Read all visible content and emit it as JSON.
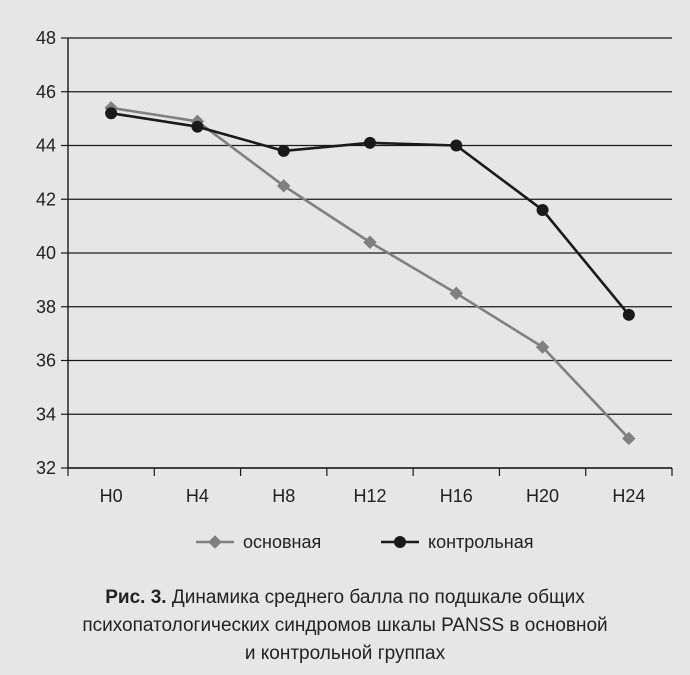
{
  "chart_data": {
    "type": "line",
    "categories": [
      "H0",
      "H4",
      "H8",
      "H12",
      "H16",
      "H20",
      "H24"
    ],
    "series": [
      {
        "name": "основная",
        "color": "#808080",
        "marker": "diamond",
        "values": [
          45.4,
          44.9,
          42.5,
          40.4,
          38.5,
          36.5,
          33.1
        ]
      },
      {
        "name": "контрольная",
        "color": "#1a1a1a",
        "marker": "circle",
        "values": [
          45.2,
          44.7,
          43.8,
          44.1,
          44.0,
          41.6,
          37.7
        ]
      }
    ],
    "yticks": [
      32,
      34,
      36,
      38,
      40,
      42,
      44,
      46,
      48
    ],
    "ylim": [
      32,
      48
    ],
    "grid": true,
    "legend_position": "bottom"
  },
  "caption": {
    "label": "Рис. 3.",
    "line1": "Динамика среднего балла по подшкале общих",
    "line2": "психопатологических синдромов шкалы PANSS в основной",
    "line3": "и контрольной группах"
  }
}
